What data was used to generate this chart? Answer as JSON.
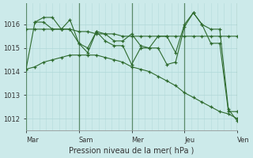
{
  "xlabel": "Pression niveau de la mer( hPa )",
  "background_color": "#cceaea",
  "plot_bg_color": "#cceaea",
  "line_color": "#2d6a2d",
  "grid_color_major": "#b0d8d8",
  "grid_color_minor": "#b8dede",
  "vline_color": "#7aaa8a",
  "ylim": [
    1011.5,
    1016.9
  ],
  "day_labels": [
    "Mar",
    "Sam",
    "Mer",
    "Jeu",
    "Ven"
  ],
  "day_positions": [
    0.0,
    0.25,
    0.5,
    0.75,
    1.0
  ],
  "series": [
    {
      "x": [
        0.0,
        0.042,
        0.083,
        0.125,
        0.167,
        0.208,
        0.25,
        0.292,
        0.333,
        0.375,
        0.417,
        0.458,
        0.5,
        0.542,
        0.583,
        0.625,
        0.667,
        0.708,
        0.75,
        0.792,
        0.833,
        0.875,
        0.917,
        0.958,
        1.0
      ],
      "y": [
        1014.1,
        1014.2,
        1014.4,
        1014.5,
        1014.6,
        1014.7,
        1014.7,
        1014.7,
        1014.7,
        1014.6,
        1014.5,
        1014.4,
        1014.2,
        1014.1,
        1014.0,
        1013.8,
        1013.6,
        1013.4,
        1013.1,
        1012.9,
        1012.7,
        1012.5,
        1012.3,
        1012.2,
        1012.0
      ]
    },
    {
      "x": [
        0.0,
        0.042,
        0.083,
        0.125,
        0.167,
        0.208,
        0.25,
        0.292,
        0.333,
        0.375,
        0.417,
        0.458,
        0.5,
        0.542,
        0.583,
        0.625,
        0.667,
        0.708,
        0.75,
        0.792,
        0.833,
        0.875,
        0.917,
        0.958,
        1.0
      ],
      "y": [
        1015.8,
        1015.8,
        1015.8,
        1015.8,
        1015.8,
        1015.8,
        1015.7,
        1015.7,
        1015.6,
        1015.6,
        1015.6,
        1015.5,
        1015.5,
        1015.5,
        1015.5,
        1015.5,
        1015.5,
        1015.5,
        1015.5,
        1015.5,
        1015.5,
        1015.5,
        1015.5,
        1015.5,
        1015.5
      ]
    },
    {
      "x": [
        0.0,
        0.042,
        0.083,
        0.125,
        0.167,
        0.208,
        0.25,
        0.292,
        0.333,
        0.375,
        0.417,
        0.458,
        0.5,
        0.542,
        0.583,
        0.625,
        0.667,
        0.708,
        0.75,
        0.792,
        0.833,
        0.875,
        0.917,
        0.958,
        1.0
      ],
      "y": [
        1014.1,
        1016.1,
        1016.1,
        1015.8,
        1015.8,
        1016.2,
        1015.2,
        1015.0,
        1015.7,
        1015.3,
        1015.1,
        1015.1,
        1014.3,
        1015.0,
        1015.0,
        1015.5,
        1015.5,
        1014.8,
        1016.0,
        1016.5,
        1016.0,
        1015.2,
        1015.2,
        1012.3,
        1012.3
      ]
    },
    {
      "x": [
        0.042,
        0.083,
        0.125,
        0.167,
        0.208,
        0.25,
        0.292,
        0.333,
        0.375,
        0.417,
        0.458,
        0.5,
        0.542,
        0.583,
        0.625,
        0.667,
        0.708,
        0.75,
        0.792,
        0.833,
        0.875,
        0.917,
        0.958,
        1.0
      ],
      "y": [
        1016.1,
        1016.3,
        1016.3,
        1015.8,
        1015.8,
        1015.2,
        1014.8,
        1015.7,
        1015.6,
        1015.3,
        1015.3,
        1015.6,
        1015.1,
        1015.0,
        1015.0,
        1014.3,
        1014.4,
        1015.9,
        1016.5,
        1016.0,
        1015.8,
        1015.8,
        1012.4,
        1011.9
      ]
    }
  ],
  "minor_grid_per_day": 8
}
